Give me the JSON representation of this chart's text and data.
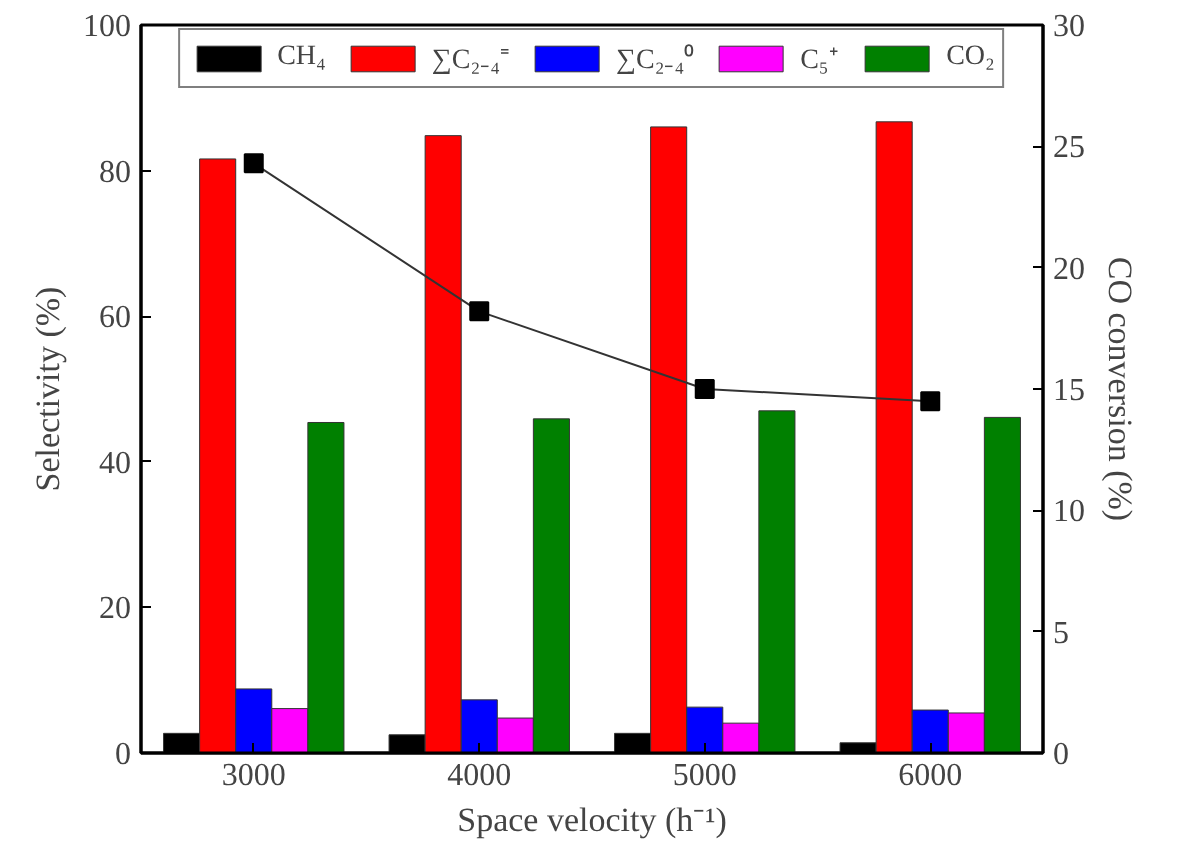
{
  "chart_data": {
    "type": "bar",
    "xlabel": "Space velocity (h⁻¹)",
    "ylabel": "Selectivity (%)",
    "y2label": "CO conversion (%)",
    "categories": [
      "3000",
      "4000",
      "5000",
      "6000"
    ],
    "series": [
      {
        "name": "CH₄",
        "color": "#000000",
        "values": [
          2.7,
          2.5,
          2.7,
          1.4
        ]
      },
      {
        "name": "∑C₂₋₄⁼",
        "color": "#ff0000",
        "values": [
          81.6,
          84.8,
          86.0,
          86.7
        ]
      },
      {
        "name": "∑C₂₋₄⁰",
        "color": "#0000ff",
        "values": [
          8.8,
          7.3,
          6.3,
          5.9
        ]
      },
      {
        "name": "C₅⁺",
        "color": "#ff00ff",
        "values": [
          6.1,
          4.8,
          4.1,
          5.5
        ]
      },
      {
        "name": "CO₂",
        "color": "#008000",
        "values": [
          45.4,
          45.9,
          47.0,
          46.1
        ]
      },
      {
        "type": "line",
        "axis": "y2",
        "color": "#333333",
        "marker": "square",
        "values": [
          24.3,
          18.2,
          15.0,
          14.5
        ]
      }
    ],
    "ylim": [
      0,
      100
    ],
    "yticks": [
      0,
      20,
      40,
      60,
      80,
      100
    ],
    "y2lim": [
      0,
      30
    ],
    "y2ticks": [
      0,
      5,
      10,
      15,
      20,
      25,
      30
    ],
    "legend": "top",
    "grid": false
  }
}
